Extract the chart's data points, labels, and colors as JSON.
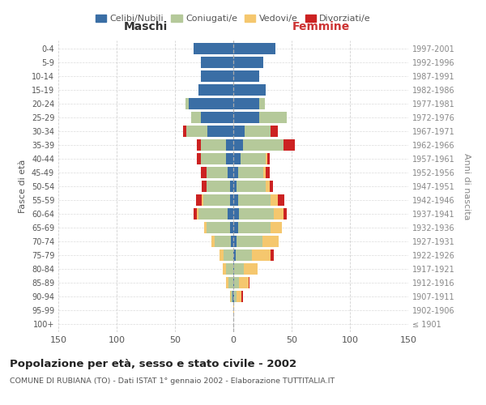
{
  "age_groups": [
    "100+",
    "95-99",
    "90-94",
    "85-89",
    "80-84",
    "75-79",
    "70-74",
    "65-69",
    "60-64",
    "55-59",
    "50-54",
    "45-49",
    "40-44",
    "35-39",
    "30-34",
    "25-29",
    "20-24",
    "15-19",
    "10-14",
    "5-9",
    "0-4"
  ],
  "birth_years": [
    "≤ 1901",
    "1902-1906",
    "1907-1911",
    "1912-1916",
    "1917-1921",
    "1922-1926",
    "1927-1931",
    "1932-1936",
    "1937-1941",
    "1942-1946",
    "1947-1951",
    "1952-1956",
    "1957-1961",
    "1962-1966",
    "1967-1971",
    "1972-1976",
    "1977-1981",
    "1982-1986",
    "1987-1991",
    "1992-1996",
    "1997-2001"
  ],
  "males": {
    "celibi": [
      0,
      0,
      1,
      0,
      0,
      0,
      2,
      3,
      5,
      3,
      3,
      5,
      6,
      6,
      22,
      28,
      38,
      30,
      28,
      28,
      34
    ],
    "coniugati": [
      0,
      0,
      1,
      4,
      6,
      8,
      14,
      20,
      25,
      23,
      20,
      18,
      22,
      22,
      18,
      8,
      3,
      0,
      0,
      0,
      0
    ],
    "vedovi": [
      0,
      0,
      1,
      2,
      3,
      4,
      3,
      2,
      1,
      1,
      0,
      0,
      0,
      0,
      0,
      0,
      0,
      0,
      0,
      0,
      0
    ],
    "divorziati": [
      0,
      0,
      0,
      0,
      0,
      0,
      0,
      0,
      3,
      5,
      4,
      5,
      3,
      3,
      3,
      0,
      0,
      0,
      0,
      0,
      0
    ]
  },
  "females": {
    "nubili": [
      0,
      0,
      1,
      1,
      1,
      2,
      3,
      4,
      5,
      4,
      3,
      4,
      6,
      8,
      10,
      22,
      22,
      28,
      22,
      26,
      36
    ],
    "coniugate": [
      0,
      0,
      2,
      4,
      8,
      14,
      22,
      28,
      30,
      28,
      25,
      22,
      22,
      35,
      22,
      24,
      5,
      0,
      0,
      0,
      0
    ],
    "vedove": [
      0,
      1,
      4,
      8,
      12,
      16,
      14,
      10,
      8,
      6,
      3,
      2,
      1,
      0,
      0,
      0,
      0,
      0,
      0,
      0,
      0
    ],
    "divorziate": [
      0,
      0,
      1,
      1,
      0,
      3,
      0,
      0,
      3,
      6,
      3,
      3,
      2,
      10,
      6,
      0,
      0,
      0,
      0,
      0,
      0
    ]
  },
  "colors": {
    "celibi": "#3A6EA5",
    "coniugati": "#B5C99A",
    "vedovi": "#F5C76E",
    "divorziati": "#CC2222"
  },
  "xlim": 150,
  "title": "Popolazione per età, sesso e stato civile - 2002",
  "subtitle": "COMUNE DI RUBIANA (TO) - Dati ISTAT 1° gennaio 2002 - Elaborazione TUTTITALIA.IT",
  "ylabel_left": "Fasce di età",
  "ylabel_right": "Anni di nascita",
  "xlabel_left": "Maschi",
  "xlabel_right": "Femmine",
  "bg_color": "#FFFFFF",
  "grid_color": "#CCCCCC",
  "bar_height": 0.85
}
